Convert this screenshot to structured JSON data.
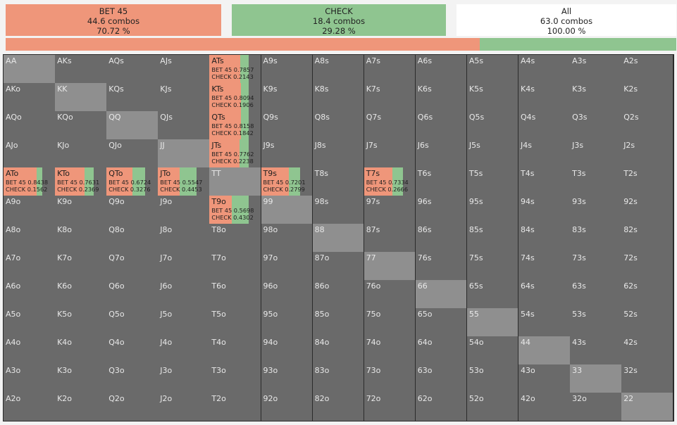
{
  "colors": {
    "bet": "#ef967a",
    "check": "#8fc590",
    "all": "#ffffff",
    "cell": "#6a6a6a",
    "pair_cell": "#8f8f8f"
  },
  "summary": [
    {
      "id": "bet-45",
      "name": "BET 45",
      "combos": "44.6 combos",
      "percent": "70.72 %",
      "color": "#ef967a"
    },
    {
      "id": "check",
      "name": "CHECK",
      "combos": "18.4 combos",
      "percent": "29.28 %",
      "color": "#8fc590"
    },
    {
      "id": "all",
      "name": "All",
      "combos": "63.0 combos",
      "percent": "100.00 %",
      "color": "#ffffff"
    }
  ],
  "frequency_bar": {
    "bet_fraction": 0.7072,
    "check_fraction": 0.2928
  },
  "ranks": [
    "A",
    "K",
    "Q",
    "J",
    "T",
    "9",
    "8",
    "7",
    "6",
    "5",
    "4",
    "3",
    "2"
  ],
  "active_hands": {
    "ATs": {
      "bet_label": "BET 45",
      "bet": "0.7857",
      "check_label": "CHECK",
      "check": "0.2143"
    },
    "KTs": {
      "bet_label": "BET 45",
      "bet": "0.8094",
      "check_label": "CHECK",
      "check": "0.1906"
    },
    "QTs": {
      "bet_label": "BET 45",
      "bet": "0.8158",
      "check_label": "CHECK",
      "check": "0.1842"
    },
    "JTs": {
      "bet_label": "BET 45",
      "bet": "0.7762",
      "check_label": "CHECK",
      "check": "0.2238"
    },
    "ATo": {
      "bet_label": "BET 45",
      "bet": "0.8438",
      "check_label": "CHECK",
      "check": "0.1562"
    },
    "KTo": {
      "bet_label": "BET 45",
      "bet": "0.7631",
      "check_label": "CHECK",
      "check": "0.2369"
    },
    "QTo": {
      "bet_label": "BET 45",
      "bet": "0.6724",
      "check_label": "CHECK",
      "check": "0.3276"
    },
    "JTo": {
      "bet_label": "BET 45",
      "bet": "0.5547",
      "check_label": "CHECK",
      "check": "0.4453"
    },
    "T9s": {
      "bet_label": "BET 45",
      "bet": "0.7201",
      "check_label": "CHECK",
      "check": "0.2799"
    },
    "T7s": {
      "bet_label": "BET 45",
      "bet": "0.7334",
      "check_label": "CHECK",
      "check": "0.2666"
    },
    "T9o": {
      "bet_label": "BET 45",
      "bet": "0.5698",
      "check_label": "CHECK",
      "check": "0.4302"
    }
  }
}
